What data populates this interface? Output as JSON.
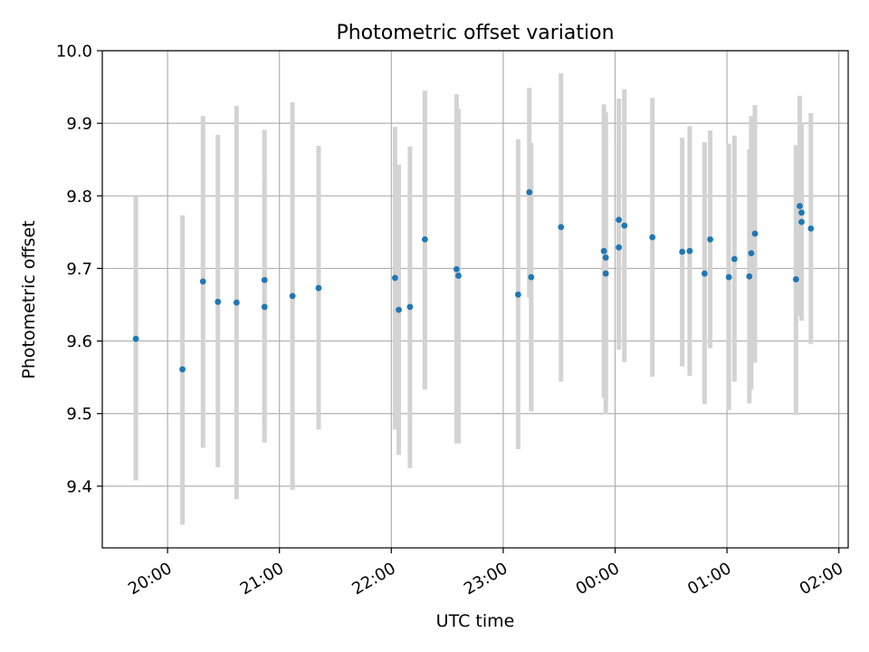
{
  "chart_data": {
    "type": "scatter",
    "title": "Photometric offset variation",
    "xlabel": "UTC time",
    "ylabel": "Photometric offset",
    "x_axis_type": "time",
    "x_start": "19:25",
    "x_end": "02:05",
    "x_ticks": [
      "20:00",
      "21:00",
      "22:00",
      "23:00",
      "00:00",
      "01:00",
      "02:00"
    ],
    "ylim": [
      9.315,
      10.0
    ],
    "y_ticks": [
      9.4,
      9.5,
      9.6,
      9.7,
      9.8,
      9.9,
      10.0
    ],
    "grid": true,
    "colors": {
      "marker": "#1f77b4",
      "errorbar": "#d3d3d3",
      "grid": "#b0b0b0",
      "axis": "#000000"
    },
    "series": [
      {
        "points": [
          {
            "x": "19:43",
            "y": 9.603,
            "lo": 9.408,
            "hi": 9.8
          },
          {
            "x": "20:08",
            "y": 9.561,
            "lo": 9.347,
            "hi": 9.773
          },
          {
            "x": "20:19",
            "y": 9.682,
            "lo": 9.453,
            "hi": 9.91
          },
          {
            "x": "20:27",
            "y": 9.654,
            "lo": 9.426,
            "hi": 9.884
          },
          {
            "x": "20:37",
            "y": 9.653,
            "lo": 9.382,
            "hi": 9.924
          },
          {
            "x": "20:52",
            "y": 9.684,
            "lo": 9.46,
            "hi": 9.891
          },
          {
            "x": "20:52",
            "y": 9.647,
            "lo": 9.48,
            "hi": 9.82
          },
          {
            "x": "21:07",
            "y": 9.662,
            "lo": 9.395,
            "hi": 9.929
          },
          {
            "x": "21:21",
            "y": 9.673,
            "lo": 9.478,
            "hi": 9.869
          },
          {
            "x": "22:02",
            "y": 9.687,
            "lo": 9.478,
            "hi": 9.895
          },
          {
            "x": "22:04",
            "y": 9.643,
            "lo": 9.443,
            "hi": 9.843
          },
          {
            "x": "22:10",
            "y": 9.647,
            "lo": 9.425,
            "hi": 9.868
          },
          {
            "x": "22:18",
            "y": 9.74,
            "lo": 9.533,
            "hi": 9.945
          },
          {
            "x": "22:35",
            "y": 9.699,
            "lo": 9.459,
            "hi": 9.94
          },
          {
            "x": "22:36",
            "y": 9.69,
            "lo": 9.459,
            "hi": 9.92
          },
          {
            "x": "23:08",
            "y": 9.664,
            "lo": 9.451,
            "hi": 9.878
          },
          {
            "x": "23:14",
            "y": 9.805,
            "lo": 9.66,
            "hi": 9.949
          },
          {
            "x": "23:15",
            "y": 9.688,
            "lo": 9.503,
            "hi": 9.873
          },
          {
            "x": "23:31",
            "y": 9.757,
            "lo": 9.544,
            "hi": 9.969
          },
          {
            "x": "23:54",
            "y": 9.724,
            "lo": 9.522,
            "hi": 9.926
          },
          {
            "x": "23:55",
            "y": 9.715,
            "lo": 9.52,
            "hi": 9.915
          },
          {
            "x": "23:55",
            "y": 9.693,
            "lo": 9.499,
            "hi": 9.887
          },
          {
            "x": "00:02",
            "y": 9.767,
            "lo": 9.6,
            "hi": 9.934
          },
          {
            "x": "00:02",
            "y": 9.729,
            "lo": 9.588,
            "hi": 9.869
          },
          {
            "x": "00:05",
            "y": 9.759,
            "lo": 9.571,
            "hi": 9.947
          },
          {
            "x": "00:20",
            "y": 9.743,
            "lo": 9.551,
            "hi": 9.935
          },
          {
            "x": "00:36",
            "y": 9.723,
            "lo": 9.565,
            "hi": 9.88
          },
          {
            "x": "00:40",
            "y": 9.724,
            "lo": 9.552,
            "hi": 9.896
          },
          {
            "x": "00:48",
            "y": 9.693,
            "lo": 9.513,
            "hi": 9.874
          },
          {
            "x": "00:51",
            "y": 9.74,
            "lo": 9.59,
            "hi": 9.89
          },
          {
            "x": "01:01",
            "y": 9.688,
            "lo": 9.505,
            "hi": 9.872
          },
          {
            "x": "01:04",
            "y": 9.713,
            "lo": 9.544,
            "hi": 9.883
          },
          {
            "x": "01:12",
            "y": 9.689,
            "lo": 9.514,
            "hi": 9.864
          },
          {
            "x": "01:13",
            "y": 9.721,
            "lo": 9.533,
            "hi": 9.91
          },
          {
            "x": "01:15",
            "y": 9.748,
            "lo": 9.57,
            "hi": 9.925
          },
          {
            "x": "01:37",
            "y": 9.685,
            "lo": 9.498,
            "hi": 9.87
          },
          {
            "x": "01:39",
            "y": 9.786,
            "lo": 9.635,
            "hi": 9.938
          },
          {
            "x": "01:40",
            "y": 9.777,
            "lo": 9.655,
            "hi": 9.9
          },
          {
            "x": "01:40",
            "y": 9.764,
            "lo": 9.628,
            "hi": 9.9
          },
          {
            "x": "01:45",
            "y": 9.755,
            "lo": 9.596,
            "hi": 9.914
          }
        ]
      }
    ]
  }
}
